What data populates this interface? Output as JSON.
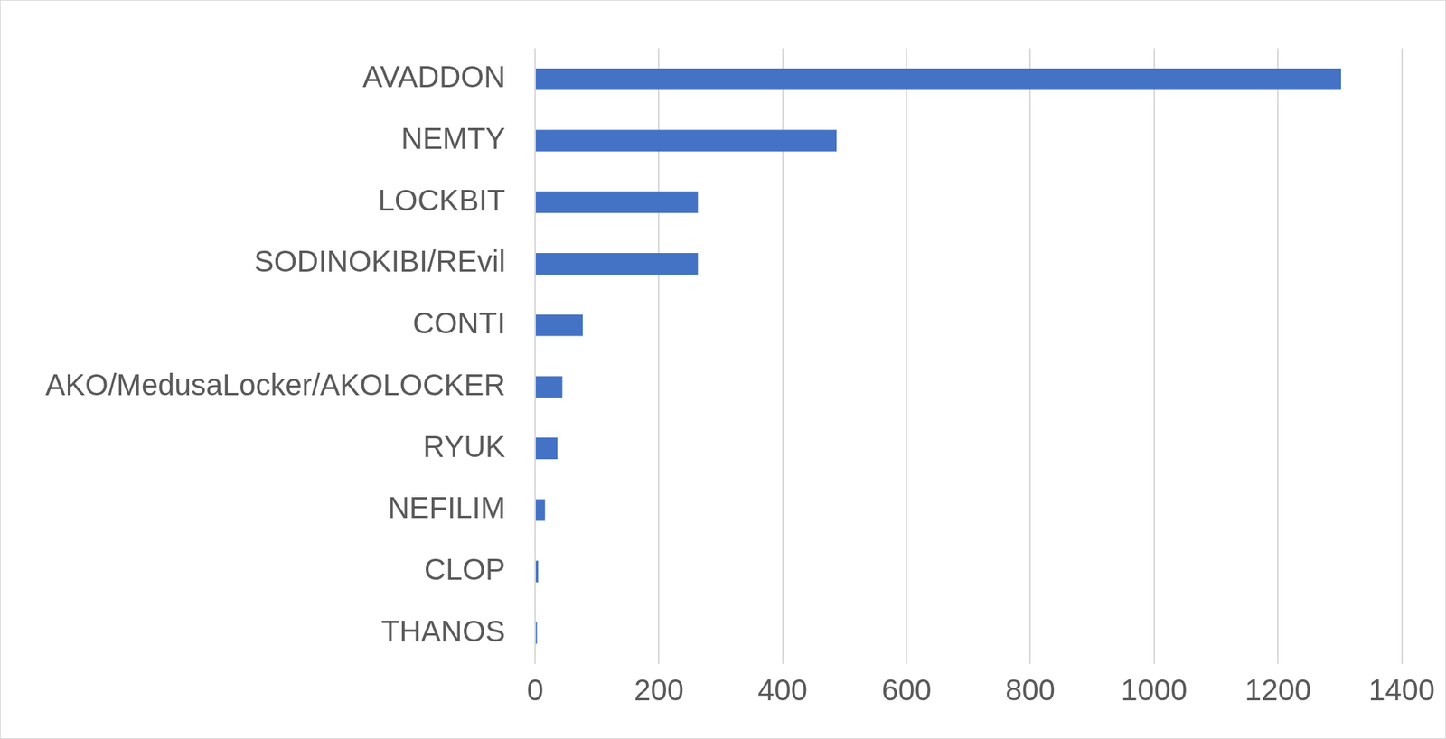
{
  "chart_data": {
    "type": "bar",
    "orientation": "horizontal",
    "categories": [
      "AVADDON",
      "NEMTY",
      "LOCKBIT",
      "SODINOKIBI/REvil",
      "CONTI",
      "AKO/MedusaLocker/AKOLOCKER",
      "RYUK",
      "NEFILIM",
      "CLOP",
      "THANOS"
    ],
    "values": [
      1302,
      487,
      263,
      263,
      77,
      44,
      36,
      16,
      5,
      3
    ],
    "color": "#4472c4",
    "xlim": [
      0,
      1400
    ],
    "xticks": [
      0,
      200,
      400,
      600,
      800,
      1000,
      1200,
      1400
    ],
    "grid": true
  }
}
